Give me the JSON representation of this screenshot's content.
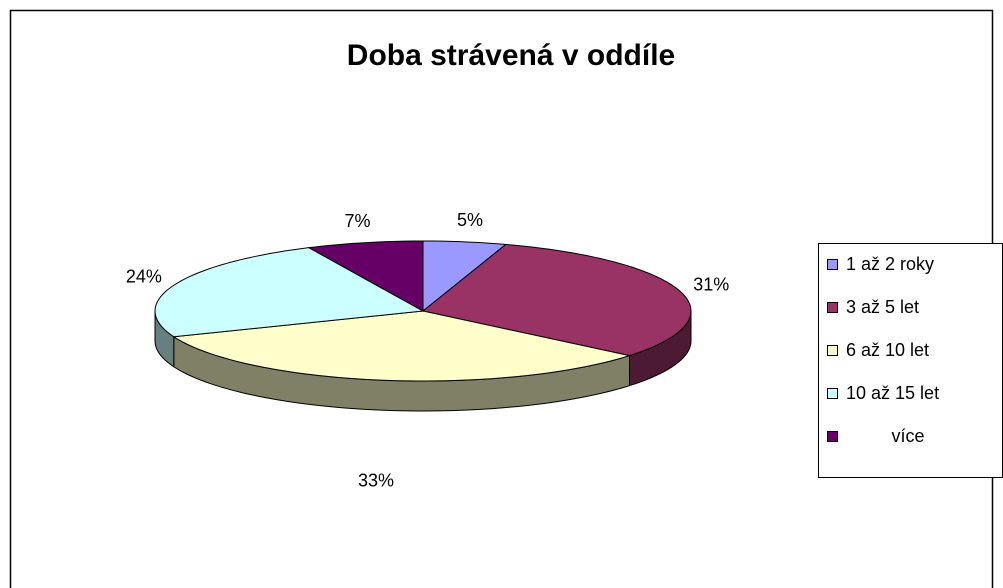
{
  "chart_data": {
    "type": "pie3d",
    "title": "Doba strávená v oddíle",
    "categories": [
      "1 až 2 roky",
      "3 až 5 let",
      "6 až 10 let",
      "10 až 15 let",
      "více"
    ],
    "values": [
      5,
      31,
      33,
      24,
      7
    ],
    "value_labels": [
      "5%",
      "31%",
      "33%",
      "24%",
      "7%"
    ],
    "colors": [
      "#9999ff",
      "#993366",
      "#ffffcc",
      "#ccffff",
      "#660066"
    ],
    "legend": "right"
  }
}
